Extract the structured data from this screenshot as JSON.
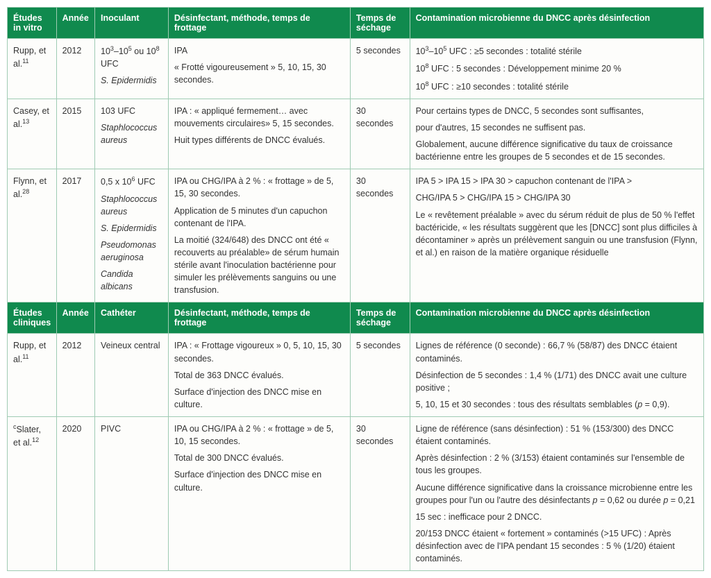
{
  "tables": [
    {
      "headers": [
        "Études in vitro",
        "Année",
        "Inoculant",
        "Désinfectant, méthode, temps de frottage",
        "Temps de séchage",
        "Contamination microbienne du DNCC après désinfection"
      ],
      "rows": [
        {
          "study_html": "Rupp, et al.<sup>11</sup>",
          "year": "2012",
          "col3_html": "<p>10<sup>3</sup>–10<sup>5</sup> ou 10<sup>8</sup> UFC</p><p><em>S. Epidermidis</em></p>",
          "col4_html": "<p>IPA</p><p>« Frotté vigoureusement » 5, 10, 15, 30 secondes.</p>",
          "col5": "5 secondes",
          "col6_html": "<p>10<sup>3</sup>–10<sup>5</sup> UFC : ≥5 secondes : totalité stérile</p><p>10<sup>8</sup> UFC : 5 secondes : Développement minime 20 %</p><p>10<sup>8</sup> UFC : ≥10 secondes : totalité stérile</p>"
        },
        {
          "study_html": "Casey, et al.<sup>13</sup>",
          "year": "2015",
          "col3_html": "<p>103 UFC</p><p><em>Staphlococcus aureus</em></p>",
          "col4_html": "<p>IPA : « appliqué fermement… avec mouvements circulaires»  5, 15 secondes.</p><p>Huit types différents de DNCC évalués.</p>",
          "col5": "30 secondes",
          "col6_html": "<p>Pour certains types de DNCC, 5 secondes sont suffisantes,</p><p>pour d'autres, 15 secondes ne suffisent pas.</p><p>Globalement, aucune différence significative du taux de croissance bactérienne entre les groupes de 5 secondes et de 15 secondes.</p>"
        },
        {
          "study_html": "Flynn, et al.<sup>28</sup>",
          "year": "2017",
          "col3_html": "<p>0,5 x 10<sup>6</sup> UFC</p><p><em>Staphlococcus aureus</em></p><p><em>S. Epidermidis</em></p><p><em>Pseudomonas aeruginosa</em></p><p><em>Candida albicans</em></p>",
          "col4_html": "<p>IPA ou CHG/IPA à 2 % : « frottage »  de 5, 15, 30 secondes.</p><p>Application de 5 minutes d'un capuchon contenant de l'IPA.</p><p>La moitié (324/648) des DNCC ont été « recouverts au préalable»  de sérum humain stérile avant l'inoculation bactérienne pour simuler les prélèvements sanguins ou une transfusion.</p>",
          "col5": "30 secondes",
          "col6_html": "<p>IPA 5 &gt; IPA 15 &gt; IPA 30 &gt; capuchon contenant de l'IPA &gt;</p><p>CHG/IPA 5 &gt; CHG/IPA 15 &gt; CHG/IPA 30</p><p>Le « revêtement préalable » avec du sérum réduit de plus de 50 % l'effet bactéricide, « les résultats suggèrent que les [DNCC] sont plus difficiles à décontaminer » après un prélèvement sanguin ou une transfusion (Flynn, et al.) en raison de la matière organique résiduelle</p>"
        }
      ]
    },
    {
      "headers": [
        "Études cliniques",
        "Année",
        "Cathéter",
        "Désinfectant, méthode, temps de frottage",
        "Temps de séchage",
        "Contamination microbienne du DNCC après désinfection"
      ],
      "rows": [
        {
          "study_html": "Rupp, et al.<sup>11</sup>",
          "year": "2012",
          "col3_html": "<p>Veineux central</p>",
          "col4_html": "<p>IPA : « Frottage vigoureux » 0, 5, 10, 15, 30 secondes.</p><p>Total de 363 DNCC évalués.</p><p>Surface d'injection des DNCC mise en culture.</p>",
          "col5": "5 secondes",
          "col6_html": "<p>Lignes de référence (0 seconde) : 66,7 % (58/87) des DNCC étaient contaminés.</p><p>Désinfection de 5 secondes : 1,4 % (1/71) des DNCC avait une culture positive ;</p><p>5, 10, 15 et 30 secondes : tous des résultats semblables (<em>p</em> = 0,9).</p>"
        },
        {
          "study_html": "<sup>c</sup>Slater, et al.<sup>12</sup>",
          "year": "2020",
          "col3_html": "<p>PIVC</p>",
          "col4_html": "<p>IPA ou CHG/IPA à 2 % : « frottage »  de 5, 10, 15 secondes.</p><p>Total de 300 DNCC évalués.</p><p>Surface d'injection des DNCC mise en culture.</p>",
          "col5": "30 secondes",
          "col6_html": "<p>Ligne de référence (sans désinfection) : 51 % (153/300) des DNCC étaient contaminés.</p><p>Après désinfection : 2 % (3/153) étaient contaminés sur l'ensemble de tous les groupes.</p><p>Aucune différence significative dans la croissance microbienne entre les groupes pour l'un ou l'autre des désinfectants <em>p</em> = 0,62 ou durée <em>p</em> = 0,21</p><p>15 sec : inefficace pour 2 DNCC.</p><p>20/153 DNCC étaient « fortement » contaminés (&gt;15 UFC) : Après désinfection avec de l'IPA pendant 15 secondes : 5 % (1/20) étaient contaminés.</p>"
        }
      ]
    }
  ]
}
